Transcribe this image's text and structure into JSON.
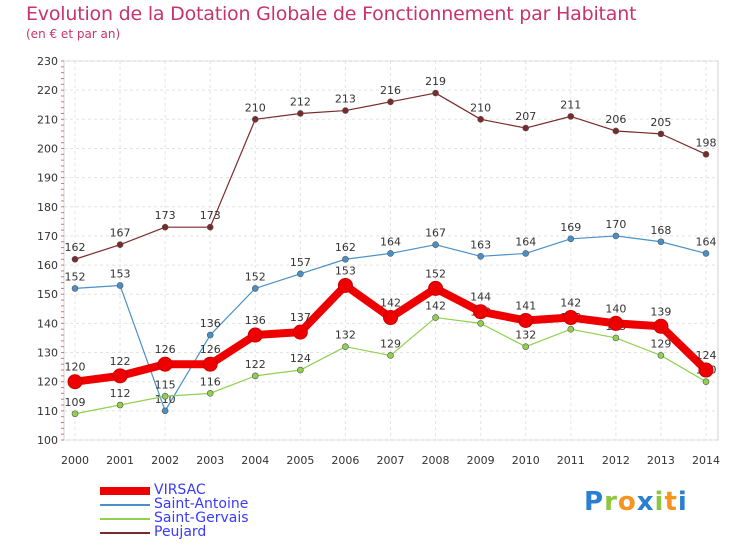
{
  "header": {
    "title": "Evolution de la Dotation Globale de Fonctionnement par Habitant",
    "subtitle": "(en € et par an)"
  },
  "brand": {
    "logo_text": "Proxiti"
  },
  "chart_data": {
    "type": "line",
    "categories": [
      "2000",
      "2001",
      "2002",
      "2003",
      "2004",
      "2005",
      "2006",
      "2007",
      "2008",
      "2009",
      "2010",
      "2011",
      "2012",
      "2013",
      "2014"
    ],
    "ylim": [
      100,
      230
    ],
    "y_ticks": [
      100,
      110,
      120,
      130,
      140,
      150,
      160,
      170,
      180,
      190,
      200,
      210,
      220,
      230
    ],
    "grid": true,
    "legend_position": "bottom-left",
    "series": [
      {
        "name": "Peujard",
        "color": "#7a2a2a",
        "values": [
          162,
          167,
          173,
          173,
          210,
          212,
          213,
          216,
          219,
          210,
          207,
          211,
          206,
          205,
          198
        ]
      },
      {
        "name": "Saint-Antoine",
        "color": "#4a90c8",
        "values": [
          152,
          153,
          110,
          136,
          152,
          157,
          162,
          164,
          167,
          163,
          164,
          169,
          170,
          168,
          164
        ]
      },
      {
        "name": "Saint-Gervais",
        "color": "#8fd14f",
        "values": [
          109,
          112,
          115,
          116,
          122,
          124,
          132,
          129,
          142,
          140,
          132,
          138,
          135,
          129,
          120
        ]
      },
      {
        "name": "VIRSAC",
        "color": "#ee0000",
        "values": [
          120,
          122,
          126,
          126,
          136,
          137,
          153,
          142,
          152,
          144,
          141,
          142,
          140,
          139,
          124
        ]
      }
    ]
  }
}
